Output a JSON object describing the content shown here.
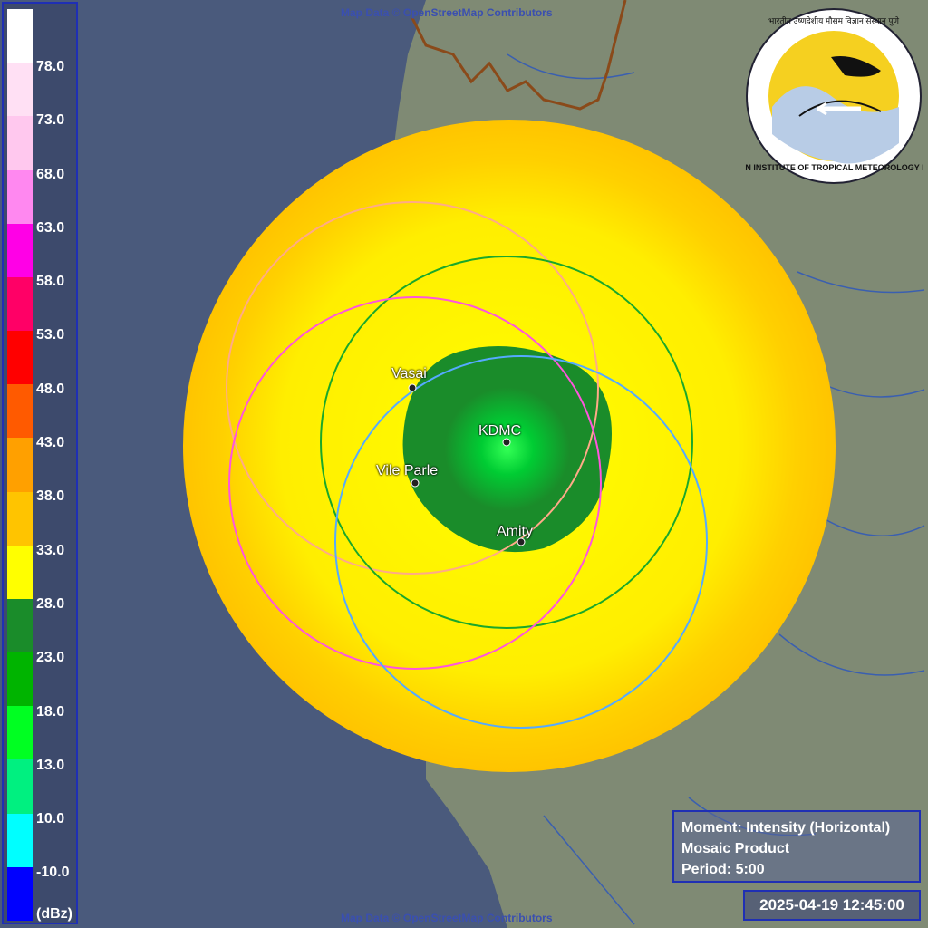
{
  "credits": {
    "top": "Map Data © OpenStreetMap Contributors",
    "bottom": "Map Data © OpenStreetMap Contributors"
  },
  "legend": {
    "unit": "(dBz)",
    "labels": [
      "78.0",
      "73.0",
      "68.0",
      "63.0",
      "58.0",
      "53.0",
      "48.0",
      "43.0",
      "38.0",
      "33.0",
      "28.0",
      "23.0",
      "18.0",
      "13.0",
      "10.0",
      "-10.0"
    ],
    "colors": [
      "#ffffff",
      "#ffe0f4",
      "#ffc8ee",
      "#ff88f0",
      "#ff00e6",
      "#ff0066",
      "#ff0000",
      "#ff5a00",
      "#ffa000",
      "#ffc400",
      "#ffff00",
      "#1a8c2a",
      "#00b400",
      "#00ff22",
      "#00f080",
      "#00ffff",
      "#0000ff"
    ]
  },
  "stations": [
    {
      "name": "Vasai"
    },
    {
      "name": "KDMC"
    },
    {
      "name": "Vile Parle"
    },
    {
      "name": "Amity"
    }
  ],
  "info": {
    "moment": "Moment: Intensity (Horizontal)",
    "product": "Mosaic Product",
    "period": "Period: 5:00"
  },
  "timestamp": "2025-04-19 12:45:00",
  "logo": {
    "text": "INDIAN INSTITUTE OF TROPICAL METEOROLOGY PUNE",
    "hindi": "भारतीय उष्णदेशीय मौसम विज्ञान संस्थान पुणे",
    "icon": "iitm-logo"
  },
  "colors": {
    "sea": "#4a5a7c",
    "land": "#7f8a74",
    "rain_light": "#ffff00",
    "rain_mid": "#ffcc00",
    "rain_green": "#1a8c2a",
    "ring_green": "#1aa82a",
    "ring_pink": "#ff55dd",
    "ring_peach": "#ffaa88",
    "ring_blue": "#55aaff"
  }
}
